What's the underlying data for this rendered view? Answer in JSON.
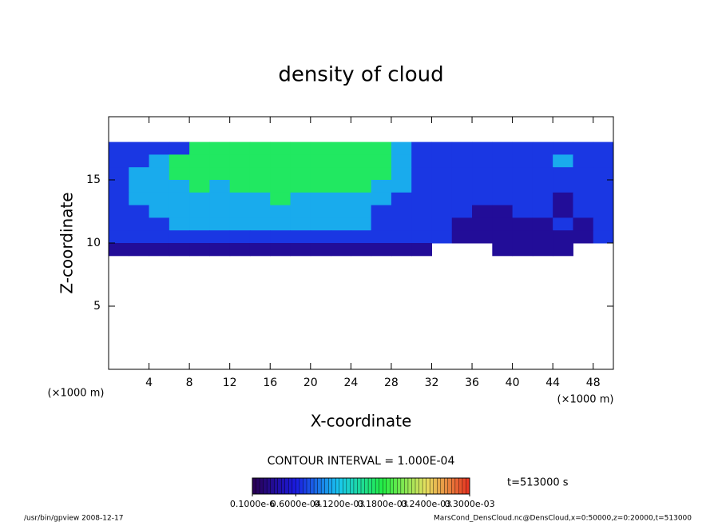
{
  "chart_data": {
    "type": "heatmap",
    "title": "density of cloud",
    "x_label": "X-coordinate",
    "y_label": "Z-coordinate",
    "x_unit": "(×1000 m)",
    "y_unit": "(×1000 m)",
    "contour_interval": "CONTOUR INTERVAL = 1.000E-04",
    "time_label": "t=513000 s",
    "footer_left": "/usr/bin/gpview  2008-12-17",
    "footer_right": "MarsCond_DensCloud.nc@DensCloud,x=0:50000,z=0:20000,t=513000",
    "xlim": [
      0,
      50
    ],
    "ylim": [
      0,
      20
    ],
    "xticks": [
      4,
      8,
      12,
      16,
      20,
      24,
      28,
      32,
      36,
      40,
      44,
      48
    ],
    "yticks": [
      5,
      10,
      15
    ],
    "x": [
      1,
      3,
      5,
      7,
      9,
      11,
      13,
      15,
      17,
      19,
      21,
      23,
      25,
      27,
      29,
      31,
      33,
      35,
      37,
      39,
      41,
      43,
      45,
      47,
      49
    ],
    "y": [
      17.5,
      16.5,
      15.5,
      14.5,
      13.5,
      12.5,
      11.5,
      10.5,
      9.5
    ],
    "cell_width": 2,
    "cell_height": 1,
    "values": [
      [
        7e-05,
        7e-05,
        7e-05,
        7e-05,
        0.00017,
        0.00017,
        0.00017,
        0.00017,
        0.00017,
        0.00017,
        0.00017,
        0.00017,
        0.00017,
        0.00017,
        0.00011,
        7e-05,
        7e-05,
        7e-05,
        7e-05,
        7e-05,
        7e-05,
        7e-05,
        7e-05,
        7e-05,
        7e-05
      ],
      [
        7e-05,
        7e-05,
        0.00011,
        0.00017,
        0.00017,
        0.00017,
        0.00017,
        0.00017,
        0.00017,
        0.00017,
        0.00017,
        0.00017,
        0.00017,
        0.00017,
        0.00011,
        7e-05,
        7e-05,
        7e-05,
        7e-05,
        7e-05,
        7e-05,
        7e-05,
        0.00011,
        7e-05,
        7e-05
      ],
      [
        7e-05,
        0.00011,
        0.00011,
        0.00017,
        0.00017,
        0.00017,
        0.00017,
        0.00017,
        0.00017,
        0.00017,
        0.00017,
        0.00017,
        0.00017,
        0.00017,
        0.00011,
        7e-05,
        7e-05,
        7e-05,
        7e-05,
        7e-05,
        7e-05,
        7e-05,
        7e-05,
        7e-05,
        7e-05
      ],
      [
        7e-05,
        0.00011,
        0.00011,
        0.00011,
        0.00017,
        0.00011,
        0.00017,
        0.00017,
        0.00017,
        0.00017,
        0.00017,
        0.00017,
        0.00017,
        0.00011,
        0.00011,
        7e-05,
        7e-05,
        7e-05,
        7e-05,
        7e-05,
        7e-05,
        7e-05,
        7e-05,
        7e-05,
        7e-05
      ],
      [
        7e-05,
        0.00011,
        0.00011,
        0.00011,
        0.00011,
        0.00011,
        0.00011,
        0.00011,
        0.00017,
        0.00011,
        0.00011,
        0.00011,
        0.00011,
        0.00011,
        7e-05,
        7e-05,
        7e-05,
        7e-05,
        7e-05,
        7e-05,
        7e-05,
        7e-05,
        3e-05,
        7e-05,
        7e-05
      ],
      [
        7e-05,
        7e-05,
        0.00011,
        0.00011,
        0.00011,
        0.00011,
        0.00011,
        0.00011,
        0.00011,
        0.00011,
        0.00011,
        0.00011,
        0.00011,
        7e-05,
        7e-05,
        7e-05,
        7e-05,
        7e-05,
        3e-05,
        3e-05,
        7e-05,
        7e-05,
        3e-05,
        7e-05,
        7e-05
      ],
      [
        7e-05,
        7e-05,
        7e-05,
        0.00011,
        0.00011,
        0.00011,
        0.00011,
        0.00011,
        0.00011,
        0.00011,
        0.00011,
        0.00011,
        0.00011,
        7e-05,
        7e-05,
        7e-05,
        7e-05,
        3e-05,
        3e-05,
        3e-05,
        3e-05,
        3e-05,
        7e-05,
        3e-05,
        7e-05
      ],
      [
        7e-05,
        7e-05,
        7e-05,
        7e-05,
        7e-05,
        7e-05,
        7e-05,
        7e-05,
        7e-05,
        7e-05,
        7e-05,
        7e-05,
        7e-05,
        7e-05,
        7e-05,
        7e-05,
        7e-05,
        3e-05,
        3e-05,
        3e-05,
        3e-05,
        3e-05,
        3e-05,
        3e-05,
        7e-05
      ],
      [
        3e-05,
        3e-05,
        3e-05,
        3e-05,
        3e-05,
        3e-05,
        3e-05,
        3e-05,
        3e-05,
        3e-05,
        3e-05,
        3e-05,
        3e-05,
        3e-05,
        3e-05,
        3e-05,
        null,
        null,
        null,
        3e-05,
        3e-05,
        3e-05,
        3e-05,
        null,
        null
      ]
    ],
    "colorbar": {
      "levels": [
        {
          "value": 1e-07,
          "label": "0.1000e-6"
        },
        {
          "value": 6e-05,
          "label": "0.6000e-04"
        },
        {
          "value": 0.00012,
          "label": "0.1200e-03"
        },
        {
          "value": 0.00018,
          "label": "0.1800e-03"
        },
        {
          "value": 0.00024,
          "label": "0.2400e-03"
        },
        {
          "value": 0.0003,
          "label": "0.3000e-03"
        }
      ],
      "colors": [
        "#2a0050",
        "#1a1ae0",
        "#19c8f0",
        "#22ee44",
        "#e8e060",
        "#e83020"
      ]
    }
  }
}
